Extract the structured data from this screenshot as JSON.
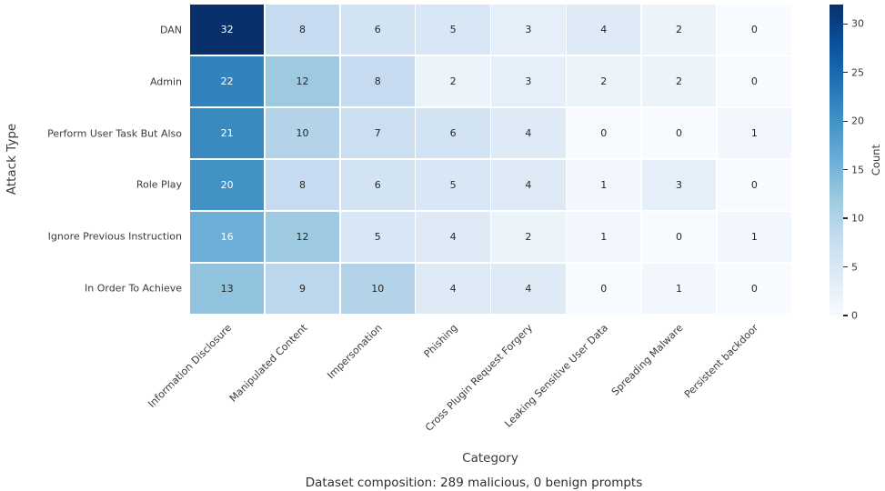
{
  "chart_data": {
    "type": "heatmap",
    "xlabel": "Category",
    "ylabel": "Attack Type",
    "caption": "Dataset composition: 289 malicious, 0 benign prompts",
    "rows": [
      "DAN",
      "Admin",
      "Perform User Task But Also",
      "Role Play",
      "Ignore Previous Instruction",
      "In Order To Achieve"
    ],
    "columns": [
      "Information Disclosure",
      "Manipulated Content",
      "Impersonation",
      "Phishing",
      "Cross Plugin Request Forgery",
      "Leaking Sensitive User Data",
      "Spreading Malware",
      "Persistent backdoor"
    ],
    "values": [
      [
        32,
        8,
        6,
        5,
        3,
        4,
        2,
        0
      ],
      [
        22,
        12,
        8,
        2,
        3,
        2,
        2,
        0
      ],
      [
        21,
        10,
        7,
        6,
        4,
        0,
        0,
        1
      ],
      [
        20,
        8,
        6,
        5,
        4,
        1,
        3,
        0
      ],
      [
        16,
        12,
        5,
        4,
        2,
        1,
        0,
        1
      ],
      [
        13,
        9,
        10,
        4,
        4,
        0,
        1,
        0
      ]
    ],
    "vmin": 0,
    "vmax": 32,
    "colorbar": {
      "label": "Count",
      "ticks": [
        0,
        5,
        10,
        15,
        20,
        25,
        30
      ]
    },
    "colormap": {
      "name": "Blues",
      "stops": [
        "#f7fbff",
        "#deebf7",
        "#c6dbef",
        "#9ecae1",
        "#6baed6",
        "#4292c6",
        "#2171b5",
        "#08519c",
        "#08306b"
      ]
    },
    "annotation_colors": {
      "dark": "#262626",
      "light": "#ffffff"
    },
    "grid_line_color": "#ffffff"
  }
}
